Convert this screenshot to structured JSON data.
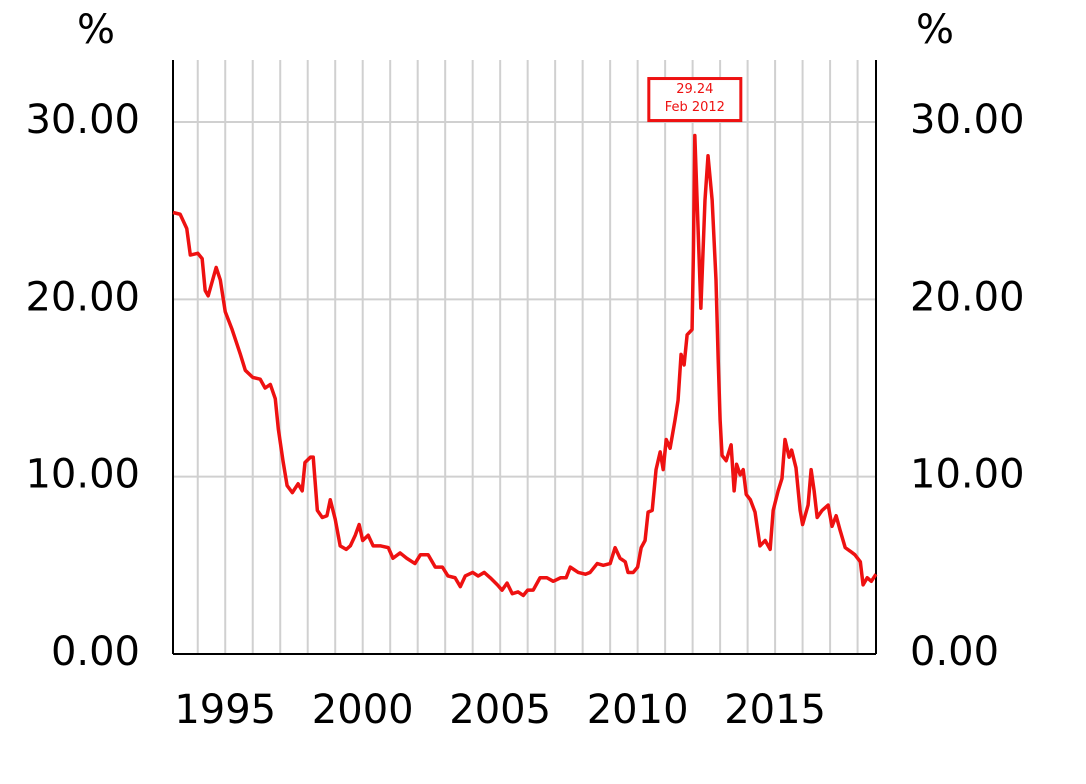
{
  "chart_data": {
    "type": "line",
    "y_label": "%",
    "y2_label": "%",
    "color": "#ee1111",
    "xlim": [
      1993.1,
      2018.67
    ],
    "xticks": [
      1995,
      2000,
      2005,
      2010,
      2015
    ],
    "xminor": [
      1994,
      1996,
      1997,
      1998,
      1999,
      2001,
      2002,
      2003,
      2004,
      2006,
      2007,
      2008,
      2009,
      2011,
      2012,
      2013,
      2014,
      2016,
      2017,
      2018
    ],
    "ylim": [
      0,
      33.5
    ],
    "yticks": [
      {
        "value": 0,
        "label": "0.00"
      },
      {
        "value": 10,
        "label": "10.00"
      },
      {
        "value": 20,
        "label": "20.00"
      },
      {
        "value": 30,
        "label": "30.00"
      }
    ],
    "y2lim": [
      0,
      33.5
    ],
    "y2ticks": [
      {
        "value": 0,
        "label": "0.00"
      },
      {
        "value": 10,
        "label": "10.00"
      },
      {
        "value": 20,
        "label": "20.00"
      },
      {
        "value": 30,
        "label": "30.00"
      }
    ],
    "grid": true,
    "annotation": {
      "x": 2012.08,
      "value": 29.24,
      "text": "Feb 2012"
    },
    "x": [
      1993.1,
      1993.36,
      1993.6,
      1993.73,
      1994.0,
      1994.16,
      1994.27,
      1994.38,
      1994.67,
      1994.82,
      1995.0,
      1995.25,
      1995.55,
      1995.73,
      1996.0,
      1996.27,
      1996.45,
      1996.64,
      1996.82,
      1996.93,
      1997.1,
      1997.25,
      1997.44,
      1997.65,
      1997.8,
      1997.9,
      1998.1,
      1998.2,
      1998.35,
      1998.53,
      1998.7,
      1998.82,
      1999.0,
      1999.18,
      1999.4,
      1999.55,
      1999.73,
      1999.87,
      2000.0,
      2000.2,
      2000.38,
      2000.64,
      2000.93,
      2001.1,
      2001.36,
      2001.6,
      2001.9,
      2002.1,
      2002.38,
      2002.64,
      2002.9,
      2003.1,
      2003.36,
      2003.55,
      2003.73,
      2004.0,
      2004.2,
      2004.42,
      2004.64,
      2004.9,
      2005.07,
      2005.25,
      2005.44,
      2005.65,
      2005.84,
      2006.0,
      2006.2,
      2006.45,
      2006.7,
      2006.93,
      2007.2,
      2007.4,
      2007.55,
      2007.84,
      2008.1,
      2008.27,
      2008.53,
      2008.75,
      2009.0,
      2009.18,
      2009.36,
      2009.55,
      2009.65,
      2009.84,
      2010.0,
      2010.13,
      2010.27,
      2010.38,
      2010.53,
      2010.67,
      2010.82,
      2010.93,
      2011.04,
      2011.18,
      2011.36,
      2011.47,
      2011.58,
      2011.69,
      2011.8,
      2011.98,
      2012.03,
      2012.08,
      2012.3,
      2012.45,
      2012.56,
      2012.71,
      2012.85,
      2012.93,
      2013.0,
      2013.07,
      2013.22,
      2013.4,
      2013.51,
      2013.6,
      2013.73,
      2013.84,
      2013.95,
      2014.1,
      2014.27,
      2014.45,
      2014.64,
      2014.82,
      2014.93,
      2015.11,
      2015.25,
      2015.36,
      2015.51,
      2015.6,
      2015.76,
      2015.91,
      2016.0,
      2016.2,
      2016.31,
      2016.42,
      2016.53,
      2016.71,
      2016.93,
      2017.07,
      2017.22,
      2017.36,
      2017.55,
      2017.73,
      2017.9,
      2018.1,
      2018.2,
      2018.35,
      2018.5,
      2018.67
    ],
    "values": [
      24.9,
      24.8,
      24.0,
      22.5,
      22.6,
      22.3,
      20.5,
      20.2,
      21.8,
      21.1,
      19.3,
      18.3,
      16.9,
      16.0,
      15.6,
      15.5,
      15.0,
      15.2,
      14.4,
      12.7,
      10.9,
      9.5,
      9.1,
      9.6,
      9.2,
      10.8,
      11.1,
      11.1,
      8.1,
      7.7,
      7.8,
      8.7,
      7.6,
      6.1,
      5.9,
      6.1,
      6.7,
      7.3,
      6.4,
      6.7,
      6.1,
      6.1,
      6.0,
      5.4,
      5.7,
      5.4,
      5.1,
      5.6,
      5.6,
      4.9,
      4.9,
      4.4,
      4.3,
      3.8,
      4.4,
      4.6,
      4.4,
      4.6,
      4.3,
      3.9,
      3.6,
      4.0,
      3.4,
      3.5,
      3.3,
      3.6,
      3.6,
      4.3,
      4.3,
      4.1,
      4.3,
      4.3,
      4.9,
      4.6,
      4.5,
      4.6,
      5.1,
      5.0,
      5.1,
      6.0,
      5.4,
      5.2,
      4.6,
      4.6,
      4.9,
      6.0,
      6.4,
      8.0,
      8.1,
      10.4,
      11.4,
      10.4,
      12.1,
      11.6,
      13.2,
      14.3,
      16.9,
      16.3,
      18.0,
      18.3,
      22.8,
      29.24,
      19.5,
      25.6,
      28.1,
      25.6,
      21.1,
      16.6,
      13.2,
      11.2,
      10.9,
      11.8,
      9.2,
      10.7,
      10.1,
      10.4,
      9.0,
      8.7,
      8.0,
      6.1,
      6.4,
      5.9,
      8.1,
      9.2,
      9.9,
      12.1,
      11.1,
      11.5,
      10.5,
      8.1,
      7.3,
      8.4,
      10.4,
      9.2,
      7.7,
      8.1,
      8.4,
      7.2,
      7.8,
      7.0,
      6.0,
      5.8,
      5.6,
      5.2,
      3.9,
      4.3,
      4.1,
      4.5
    ]
  }
}
